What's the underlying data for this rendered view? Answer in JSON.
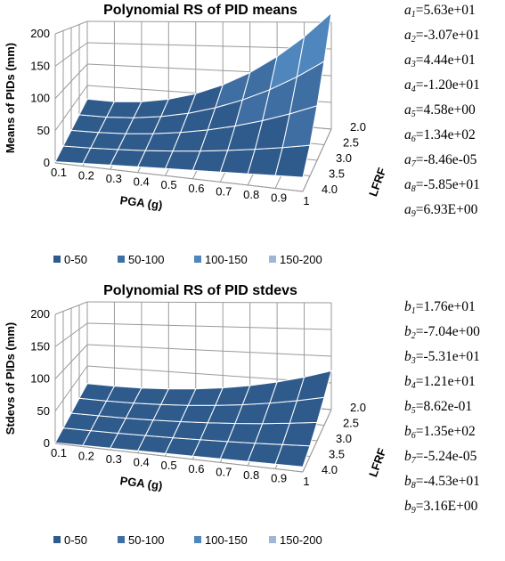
{
  "chart_data": [
    {
      "type": "surface",
      "title": "Polynomial RS of PID means",
      "zlabel": "Means of PIDs (mm)",
      "xlabel": "PGA (g)",
      "ylabel": "LFRF",
      "z_ticks": [
        "0",
        "50",
        "100",
        "150",
        "200"
      ],
      "zlim": [
        0,
        200
      ],
      "x_ticks": [
        "0.1",
        "0.2",
        "0.3",
        "0.4",
        "0.5",
        "0.6",
        "0.7",
        "0.8",
        "0.9",
        "1"
      ],
      "y_ticks": [
        "2.0",
        "2.5",
        "3.0",
        "3.5",
        "4.0"
      ],
      "legend": [
        "0-50",
        "50-100",
        "100-150",
        "150-200"
      ],
      "legend_colors": [
        "#2f5b8c",
        "#3f6ea3",
        "#4f86bd",
        "#9fb6d6"
      ],
      "legend_position": "bottom",
      "grid": true,
      "coefficients": [
        {
          "symbol": "a",
          "index": "1",
          "text": "=5.63e+01"
        },
        {
          "symbol": "a",
          "index": "2",
          "text": "=-3.07e+01"
        },
        {
          "symbol": "a",
          "index": "3",
          "text": "=4.44e+01"
        },
        {
          "symbol": "a",
          "index": "4",
          "text": "=-1.20e+01"
        },
        {
          "symbol": "a",
          "index": "5",
          "text": "=4.58e+00"
        },
        {
          "symbol": "a",
          "index": "6",
          "text": "=1.34e+02"
        },
        {
          "symbol": "a",
          "index": "7",
          "text": "=-8.46e-05"
        },
        {
          "symbol": "a",
          "index": "8",
          "text": "=-5.85e+01"
        },
        {
          "symbol": "a",
          "index": "9",
          "text": "=6.93E+00"
        }
      ],
      "surface_corner_values": {
        "pga_0.1_lfrf_2.0": 12,
        "pga_0.1_lfrf_4.0": 2,
        "pga_1_lfrf_4.0": 22,
        "pga_1_lfrf_2.0": 180
      }
    },
    {
      "type": "surface",
      "title": "Polynomial RS of PID stdevs",
      "zlabel": "Stdevs of PIDs (mm)",
      "xlabel": "PGA (g)",
      "ylabel": "LFRF",
      "z_ticks": [
        "0",
        "50",
        "100",
        "150",
        "200"
      ],
      "zlim": [
        0,
        200
      ],
      "x_ticks": [
        "0.1",
        "0.2",
        "0.3",
        "0.4",
        "0.5",
        "0.6",
        "0.7",
        "0.8",
        "0.9",
        "1"
      ],
      "y_ticks": [
        "2.0",
        "2.5",
        "3.0",
        "3.5",
        "4.0"
      ],
      "legend": [
        "0-50",
        "50-100",
        "100-150",
        "150-200"
      ],
      "legend_colors": [
        "#2f5b8c",
        "#3f6ea3",
        "#4f86bd",
        "#9fb6d6"
      ],
      "legend_position": "bottom",
      "grid": true,
      "coefficients": [
        {
          "symbol": "b",
          "index": "1",
          "text": "=1.76e+01"
        },
        {
          "symbol": "b",
          "index": "2",
          "text": "=-7.04e+00"
        },
        {
          "symbol": "b",
          "index": "3",
          "text": "=-5.31e+01"
        },
        {
          "symbol": "b",
          "index": "4",
          "text": "=1.21e+01"
        },
        {
          "symbol": "b",
          "index": "5",
          "text": "=8.62e-01"
        },
        {
          "symbol": "b",
          "index": "6",
          "text": "=1.35e+02"
        },
        {
          "symbol": "b",
          "index": "7",
          "text": "=-5.24e-05"
        },
        {
          "symbol": "b",
          "index": "8",
          "text": "=-4.53e+01"
        },
        {
          "symbol": "b",
          "index": "9",
          "text": "=3.16E+00"
        }
      ],
      "surface_corner_values": {
        "pga_0.1_lfrf_2.0": 6,
        "pga_0.1_lfrf_4.0": 1,
        "pga_1_lfrf_4.0": 8,
        "pga_1_lfrf_2.0": 60
      }
    }
  ]
}
